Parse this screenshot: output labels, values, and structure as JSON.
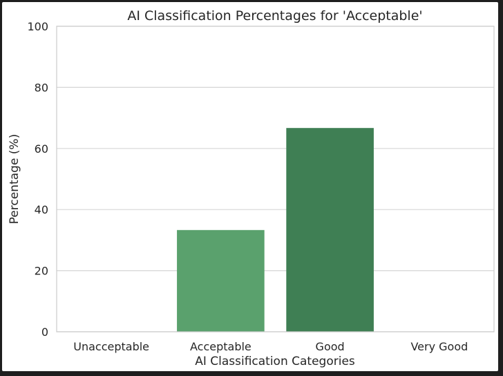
{
  "chart_data": {
    "type": "bar",
    "title": "AI Classification Percentages for 'Acceptable'",
    "xlabel": "AI Classification Categories",
    "ylabel": "Percentage (%)",
    "categories": [
      "Unacceptable",
      "Acceptable",
      "Good",
      "Very Good"
    ],
    "values": [
      0,
      33.3,
      66.7,
      0
    ],
    "ylim": [
      0,
      100
    ],
    "yticks": [
      0,
      20,
      40,
      60,
      80,
      100
    ],
    "grid": true,
    "colors": [
      "#5aa16d",
      "#5aa16d",
      "#3f7f54",
      "#3f7f54"
    ]
  }
}
